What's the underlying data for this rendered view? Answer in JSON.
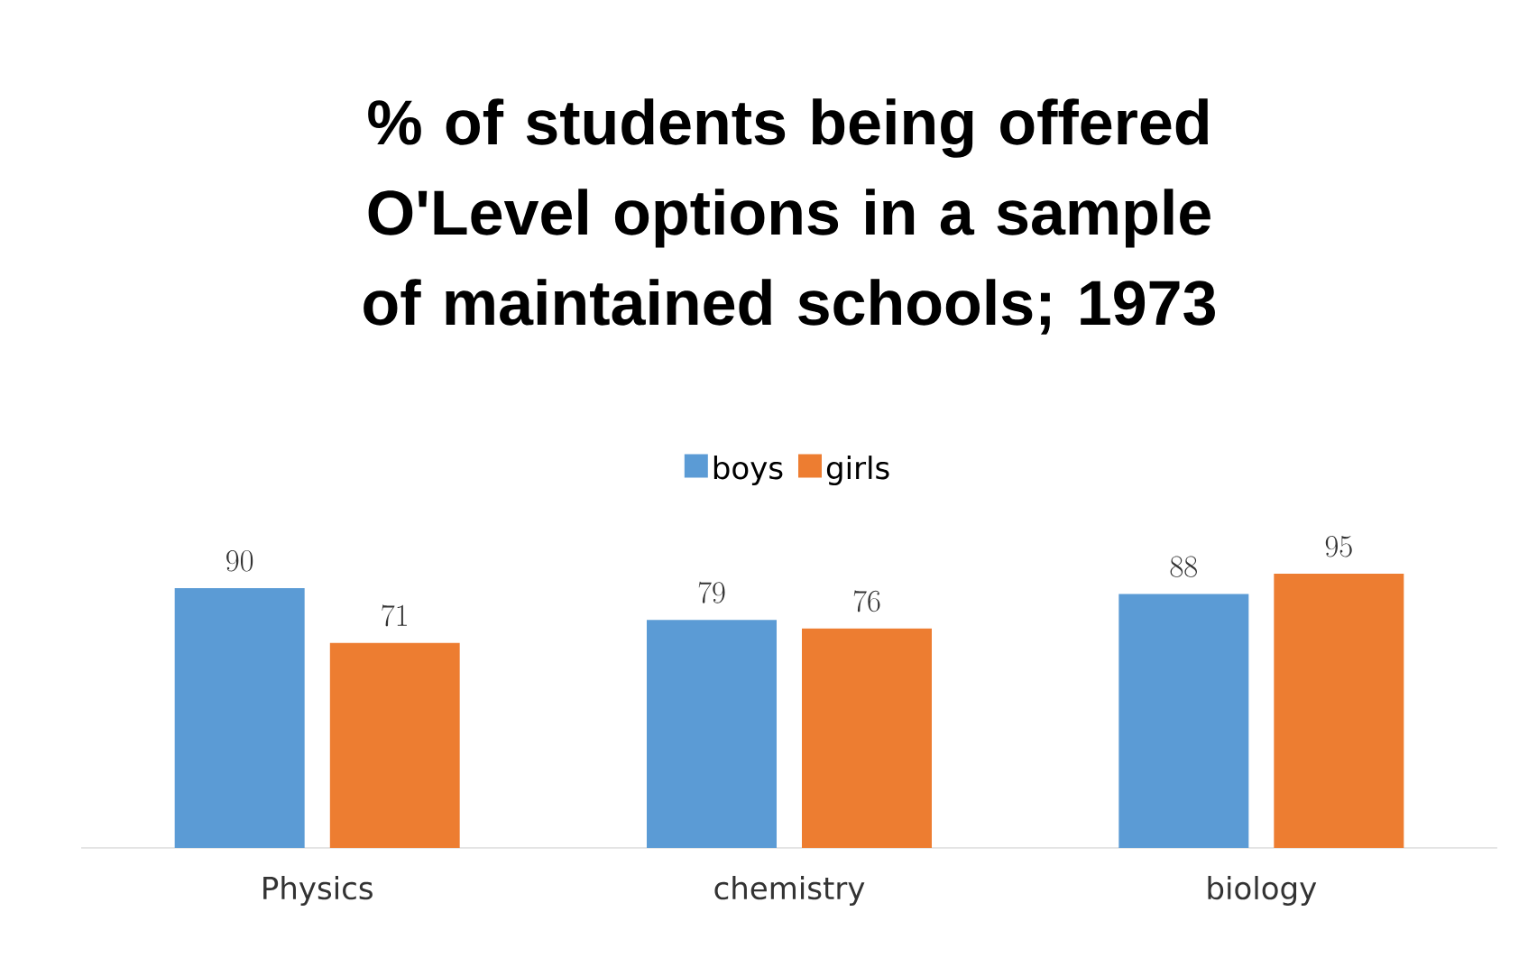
{
  "chart_data": {
    "type": "bar",
    "title": "% of students being offered O'Level options in a sample of maintained schools; 1973",
    "categories": [
      "Physics",
      "chemistry",
      "biology"
    ],
    "series": [
      {
        "name": "boys",
        "color": "#5b9bd5",
        "values": [
          90,
          79,
          88
        ]
      },
      {
        "name": "girls",
        "color": "#ed7d31",
        "values": [
          71,
          76,
          95
        ]
      }
    ],
    "data_labels": true,
    "legend": "top"
  }
}
